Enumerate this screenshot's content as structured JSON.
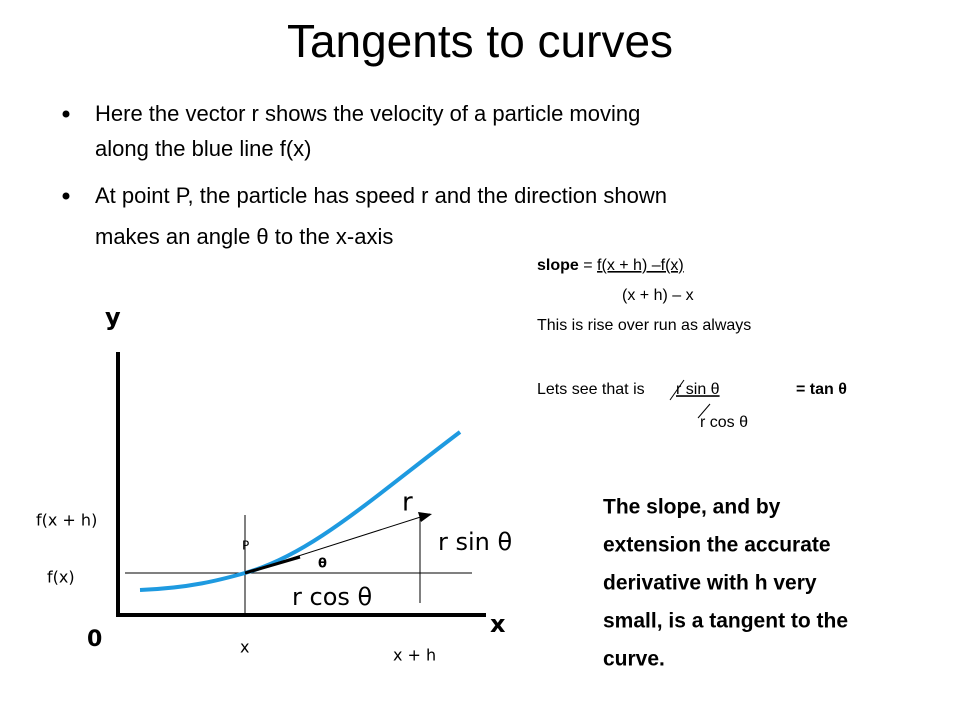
{
  "title": "Tangents to curves",
  "bullets": [
    [
      "Here the vector r shows  the velocity of a particle moving",
      "along the blue line f(x)"
    ],
    [
      "At point P, the particle has speed r and the direction shown",
      "makes an angle θ to the x-axis"
    ]
  ],
  "formula": {
    "slope": "slope",
    "equals": "=",
    "numerator": "f(x + h) –f(x)",
    "denominator": "(x + h) – x",
    "note": "This is rise over run as always",
    "lets": "Lets see that is",
    "top": "r sin θ",
    "result": "=  tan θ",
    "bottom": "r cos θ"
  },
  "diagram": {
    "y_axis": "y",
    "x_axis": "x",
    "origin": "0",
    "fxh": "f(x + h)",
    "fx": "f(x)",
    "x": "x",
    "xh": "x + h",
    "p": "P",
    "r": "r",
    "rsin": "r sin θ",
    "theta": "θ",
    "rcos": "r cos θ"
  },
  "conclusion": [
    "The slope, and by",
    "extension the accurate",
    "derivative with h very",
    "small, is a tangent to the",
    "curve."
  ]
}
